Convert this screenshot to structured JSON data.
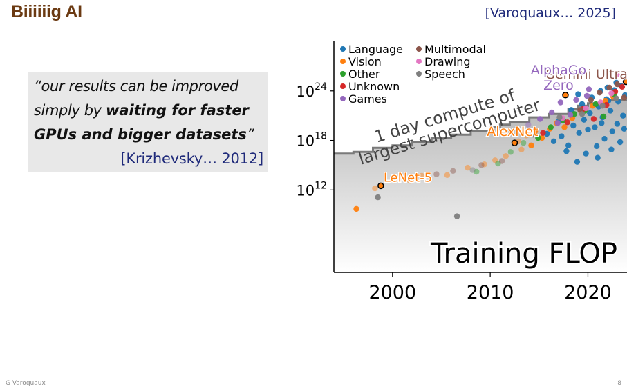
{
  "slide": {
    "title": "Biiiiiig AI",
    "citation": "[Varoquaux… 2025]",
    "footer_author": "G Varoquaux",
    "page_number": "8"
  },
  "quote": {
    "open": "“",
    "part1": "our results can be improved simply by ",
    "bold": "waiting for faster GPUs and bigger datasets",
    "close": "”",
    "citation": "[Krizhevsky… 2012]"
  },
  "chart_data": {
    "type": "scatter",
    "title": "Training FLOP",
    "y_scale": "log",
    "xlim": [
      1994,
      2024
    ],
    "ylim_log10": [
      2,
      30
    ],
    "x_ticks": [
      2000,
      2010,
      2020
    ],
    "y_ticks": [
      {
        "base": "10",
        "exp": "12",
        "value_log10": 12
      },
      {
        "base": "10",
        "exp": "18",
        "value_log10": 18
      },
      {
        "base": "10",
        "exp": "24",
        "value_log10": 24
      }
    ],
    "legend": {
      "position": "top-left",
      "entries": [
        {
          "name": "Language",
          "color": "#1f77b4"
        },
        {
          "name": "Vision",
          "color": "#ff7f0e"
        },
        {
          "name": "Other",
          "color": "#2ca02c"
        },
        {
          "name": "Unknown",
          "color": "#d62728"
        },
        {
          "name": "Games",
          "color": "#9467bd"
        },
        {
          "name": "Multimodal",
          "color": "#8c564b"
        },
        {
          "name": "Drawing",
          "color": "#e377c2"
        },
        {
          "name": "Speech",
          "color": "#7f7f7f"
        }
      ]
    },
    "supercomputer_line": {
      "label": "1 day compute of largest supercomputer",
      "color": "#7a7a7a",
      "x": [
        1994,
        1996,
        1998,
        2000,
        2002,
        2004,
        2006,
        2008,
        2010,
        2011,
        2012,
        2014,
        2016,
        2018,
        2019,
        2020,
        2022,
        2024
      ],
      "y_log10": [
        16.4,
        16.6,
        17.1,
        17.4,
        17.8,
        18.3,
        18.7,
        19.1,
        19.6,
        19.9,
        20.2,
        20.8,
        21.2,
        21.8,
        22.2,
        22.5,
        22.9,
        23.4
      ]
    },
    "annotations": [
      {
        "label": "Gemini Ultra",
        "x": 2023.5,
        "y_log10": 25.3,
        "color": "#8c564b"
      },
      {
        "label": "AlphaGo Zero",
        "x": 2017.7,
        "y_log10": 23.8,
        "color": "#9467bd"
      },
      {
        "label": "AlexNet",
        "x": 2012.5,
        "y_log10": 18.4,
        "color": "#ff7f0e"
      },
      {
        "label": "LeNet-5",
        "x": 1998.8,
        "y_log10": 12.5,
        "color": "#ff7f0e"
      }
    ],
    "highlighted_points": [
      {
        "name": "LeNet-5",
        "x": 1998.8,
        "y_log10": 12.5
      },
      {
        "name": "AlexNet",
        "x": 2012.5,
        "y_log10": 17.7
      },
      {
        "name": "AlphaGo Zero",
        "x": 2017.7,
        "y_log10": 23.5
      },
      {
        "name": "Gemini Ultra",
        "x": 2023.9,
        "y_log10": 25.1
      }
    ],
    "series": [
      {
        "name": "Language",
        "x": [
          2017.3,
          2018.0,
          2018.5,
          2019.1,
          2019.6,
          2020.2,
          2020.7,
          2021.1,
          2021.5,
          2021.9,
          2022.3,
          2022.7,
          2023.1,
          2023.4,
          2023.8,
          2016.5,
          2017.8,
          2019.8,
          2020.9,
          2021.7,
          2022.5,
          2023.0,
          2023.6,
          2019.4,
          2020.4,
          2021.3,
          2022.0,
          2022.9,
          2018.9,
          2021.0,
          2022.4,
          2023.3,
          2017.0,
          2020.0,
          2022.1,
          2018.3,
          2021.4,
          2023.7,
          2015.8,
          2019.0
        ],
        "y_log10": [
          18.5,
          17.4,
          19.8,
          18.9,
          20.5,
          21.3,
          19.6,
          22.1,
          20.8,
          23.0,
          21.6,
          24.1,
          22.7,
          24.6,
          23.5,
          17.9,
          16.7,
          16.4,
          17.3,
          18.2,
          19.1,
          20.0,
          21.0,
          22.4,
          23.2,
          24.0,
          24.4,
          25.0,
          15.4,
          15.9,
          16.9,
          17.8,
          20.3,
          19.3,
          22.8,
          21.7,
          20.1,
          19.4,
          18.8,
          23.6
        ]
      },
      {
        "name": "Vision",
        "x": [
          1996.3,
          1998.2,
          2001.8,
          2003.0,
          2005.6,
          2007.7,
          2009.4,
          2010.5,
          2011.6,
          2012.9,
          2013.7,
          2014.6,
          2015.3,
          2016.1,
          2016.8,
          2017.6,
          2018.4,
          2019.3,
          2020.5,
          2021.8,
          2022.6,
          2013.2,
          2014.2
        ],
        "y_log10": [
          9.7,
          12.2,
          13.1,
          13.7,
          13.8,
          14.7,
          15.1,
          15.6,
          16.1,
          17.9,
          18.6,
          19.1,
          18.3,
          19.4,
          20.1,
          19.6,
          20.7,
          21.5,
          22.2,
          22.8,
          23.3,
          16.9,
          17.4
        ]
      },
      {
        "name": "Other",
        "x": [
          2008.6,
          2012.1,
          2013.4,
          2014.9,
          2016.2,
          2017.5,
          2018.6,
          2019.7,
          2020.8,
          2021.6,
          2022.7,
          2010.8
        ],
        "y_log10": [
          14.2,
          16.6,
          17.7,
          18.3,
          19.6,
          20.4,
          21.2,
          21.6,
          22.4,
          20.9,
          23.6,
          15.2
        ]
      },
      {
        "name": "Unknown",
        "x": [
          2015.4,
          2017.9,
          2019.5,
          2020.6,
          2021.9,
          2022.8,
          2023.5
        ],
        "y_log10": [
          18.9,
          20.2,
          21.8,
          20.6,
          22.3,
          23.9,
          24.5
        ]
      },
      {
        "name": "Games",
        "x": [
          2013.9,
          2015.1,
          2016.3,
          2017.2,
          2018.2,
          2018.8,
          2019.9,
          2016.9,
          2020.1
        ],
        "y_log10": [
          19.9,
          20.6,
          21.4,
          22.6,
          21.1,
          22.9,
          23.4,
          20.1,
          24.2
        ]
      },
      {
        "name": "Multimodal",
        "x": [
          2004.5,
          2006.2,
          2009.1,
          2011.2,
          2019.2,
          2020.3,
          2021.2,
          2022.2,
          2023.0,
          2023.7
        ],
        "y_log10": [
          13.9,
          14.3,
          15.0,
          15.5,
          21.7,
          22.9,
          23.8,
          24.4,
          24.8,
          23.2
        ]
      },
      {
        "name": "Drawing",
        "x": [
          2017.4,
          2019.8,
          2021.3,
          2022.4,
          2023.2
        ],
        "y_log10": [
          20.7,
          21.9,
          22.6,
          23.7,
          26.0
        ]
      },
      {
        "name": "Speech",
        "x": [
          1998.5,
          2008.2,
          2014.4,
          2017.1,
          2019.4,
          2021.5,
          2022.9,
          2006.6
        ],
        "y_log10": [
          11.1,
          14.4,
          18.7,
          20.8,
          21.2,
          22.2,
          23.1,
          8.8
        ]
      }
    ]
  }
}
